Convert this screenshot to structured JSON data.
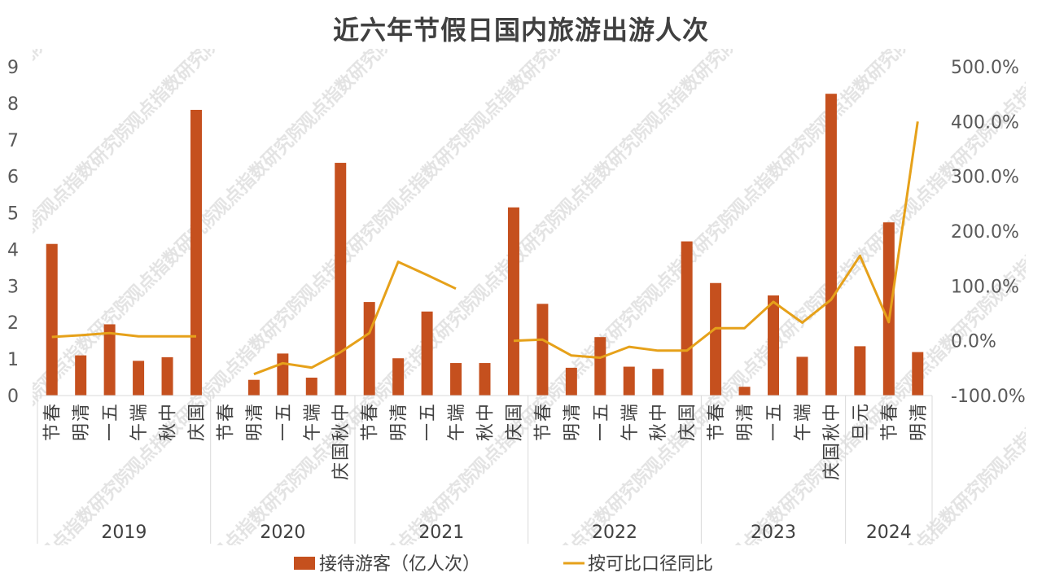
{
  "chart_data": {
    "type": "bar",
    "title": "近六年节假日国内旅游出游人次",
    "years": [
      {
        "label": "2019",
        "count": 6
      },
      {
        "label": "2020",
        "count": 5
      },
      {
        "label": "2021",
        "count": 6
      },
      {
        "label": "2022",
        "count": 6
      },
      {
        "label": "2023",
        "count": 5
      },
      {
        "label": "2024",
        "count": 3
      }
    ],
    "categories": [
      "春节",
      "清明",
      "五一",
      "端午",
      "中秋",
      "国庆",
      "春节",
      "清明",
      "五一",
      "端午",
      "中秋国庆",
      "春节",
      "清明",
      "五一",
      "端午",
      "中秋",
      "国庆",
      "春节",
      "清明",
      "五一",
      "端午",
      "中秋",
      "国庆",
      "春节",
      "清明",
      "五一",
      "端午",
      "中秋国庆",
      "元旦",
      "春节",
      "清明"
    ],
    "series": [
      {
        "name": "接待游客（亿人次）",
        "type": "bar",
        "axis": "left",
        "color": "#C5501E",
        "values": [
          4.15,
          1.1,
          1.95,
          0.95,
          1.05,
          7.82,
          null,
          0.43,
          1.15,
          0.49,
          6.37,
          2.56,
          1.02,
          2.3,
          0.89,
          0.89,
          5.15,
          2.51,
          0.76,
          1.6,
          0.79,
          0.73,
          4.22,
          3.08,
          0.24,
          2.74,
          1.06,
          8.26,
          1.35,
          4.74,
          1.19
        ]
      },
      {
        "name": "按可比口径同比",
        "type": "line",
        "axis": "right",
        "color": "#E6A11A",
        "values": [
          7,
          10,
          14,
          8,
          null,
          8,
          null,
          -61,
          -41,
          -49,
          -21,
          14,
          144,
          120,
          95,
          null,
          0,
          2,
          -27,
          -31,
          -11,
          -18,
          -18,
          23,
          23,
          71,
          33,
          75,
          155,
          34,
          400
        ]
      }
    ],
    "y_left": {
      "min": 0,
      "max": 9,
      "ticks": [
        "0",
        "1",
        "2",
        "3",
        "4",
        "5",
        "6",
        "7",
        "8",
        "9"
      ]
    },
    "y_right": {
      "min": -100,
      "max": 500,
      "ticks": [
        "-100.0%",
        "0.0%",
        "100.0%",
        "200.0%",
        "300.0%",
        "400.0%",
        "500.0%"
      ]
    },
    "watermark": "观点指数研究院",
    "legend_position": "bottom",
    "grid": false
  }
}
